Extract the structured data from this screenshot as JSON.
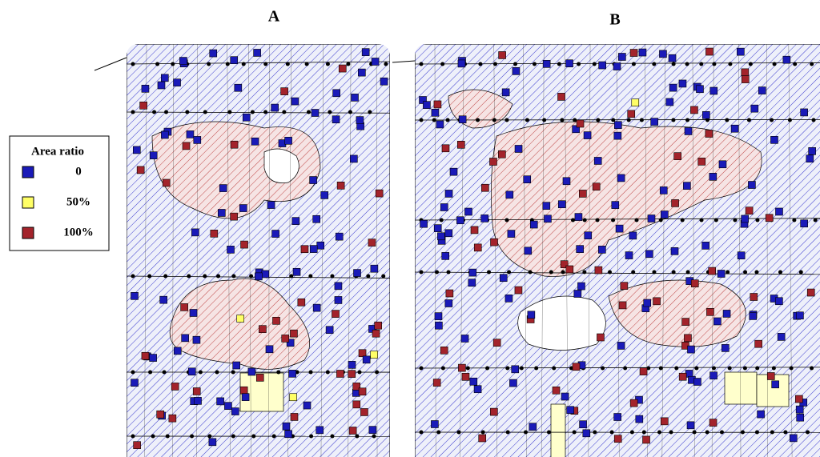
{
  "panels": [
    {
      "label": "A"
    },
    {
      "label": "B"
    }
  ],
  "legend": {
    "title": "Area ratio",
    "items": [
      {
        "label": "0",
        "color": "#1a1ab8"
      },
      {
        "label": "50%",
        "color": "#ffff66"
      },
      {
        "label": "100%",
        "color": "#a3232b"
      }
    ]
  }
}
